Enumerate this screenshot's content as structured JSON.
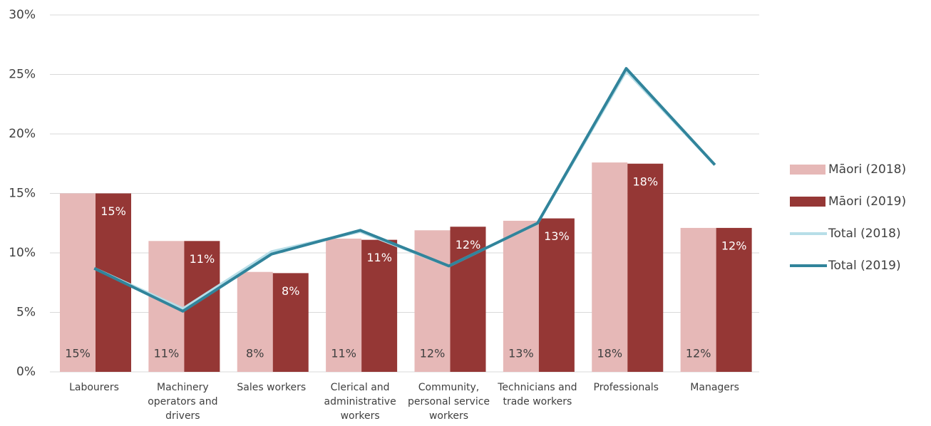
{
  "chart_data": {
    "type": "bar",
    "categories": [
      "Labourers",
      "Machinery operators and drivers",
      "Sales workers",
      "Clerical and administrative workers",
      "Community, personal service workers",
      "Technicians and trade workers",
      "Professionals",
      "Managers"
    ],
    "series": [
      {
        "name": "Māori (2018)",
        "type": "bar",
        "color": "#e6b8b7",
        "values": [
          15.0,
          11.0,
          8.4,
          11.2,
          11.9,
          12.7,
          17.6,
          12.1
        ],
        "value_labels": [
          "15%",
          "11%",
          "8%",
          "11%",
          "12%",
          "13%",
          "18%",
          "12%"
        ]
      },
      {
        "name": "Māori (2019)",
        "type": "bar",
        "color": "#953735",
        "values": [
          15.0,
          11.0,
          8.3,
          11.1,
          12.2,
          12.9,
          17.5,
          12.1
        ],
        "value_labels": [
          "15%",
          "11%",
          "8%",
          "11%",
          "12%",
          "13%",
          "18%",
          "12%"
        ]
      },
      {
        "name": "Total (2018)",
        "type": "line",
        "color": "#b7dee8",
        "values": [
          8.7,
          5.3,
          10.1,
          11.8,
          8.9,
          12.5,
          25.3,
          17.4
        ]
      },
      {
        "name": "Total (2019)",
        "type": "line",
        "color": "#31849b",
        "values": [
          8.7,
          5.1,
          9.9,
          11.9,
          8.9,
          12.5,
          25.5,
          17.4
        ]
      }
    ],
    "ylim": [
      0,
      30
    ],
    "yticks": [
      {
        "value": 0,
        "label": "0%"
      },
      {
        "value": 5,
        "label": "5%"
      },
      {
        "value": 10,
        "label": "10%"
      },
      {
        "value": 15,
        "label": "15%"
      },
      {
        "value": 20,
        "label": "20%"
      },
      {
        "value": 25,
        "label": "25%"
      },
      {
        "value": 30,
        "label": "30%"
      }
    ],
    "grid": true,
    "legend": "right"
  }
}
